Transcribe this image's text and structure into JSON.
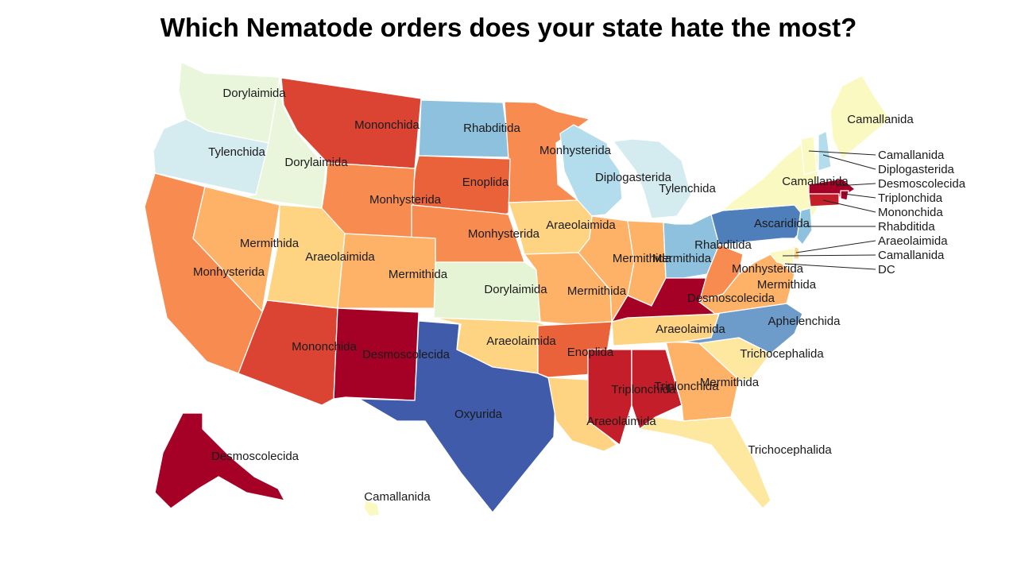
{
  "title": "Which Nematode orders does your state hate the most?",
  "colors": {
    "Dorylaimida_pale": "#eaf6dc",
    "Tylenchida": "#d4ecef",
    "Diplogasterida": "#b3dcec",
    "Rhabditida": "#8dc1de",
    "Ascaridida": "#4e7fba",
    "Aphelenchida": "#6d9bca",
    "Oxyurida": "#3f5ba9",
    "Camallanida": "#fbf9c2",
    "Trichocephalida": "#fee8a0",
    "Araeolaimida": "#fed382",
    "Mermithida": "#fdb267",
    "Monhysterida": "#f88c50",
    "Enoplida": "#ea6239",
    "Mononchida": "#db4432",
    "Triplonchida": "#c41e2a",
    "Desmoscolecida": "#a50026",
    "Dorylaimida_green": "#e6f4d6"
  },
  "states": [
    {
      "id": "WA",
      "label": "Dorylaimida",
      "order": "Dorylaimida"
    },
    {
      "id": "OR",
      "label": "Tylenchida",
      "order": "Tylenchida"
    },
    {
      "id": "ID",
      "label": "Dorylaimida",
      "order": "Dorylaimida"
    },
    {
      "id": "MT",
      "label": "Mononchida",
      "order": "Mononchida"
    },
    {
      "id": "ND",
      "label": "Rhabditida",
      "order": "Rhabditida"
    },
    {
      "id": "MN",
      "label": "Monhysterida",
      "order": "Monhysterida"
    },
    {
      "id": "WI",
      "label": "Diplogasterida",
      "order": "Diplogasterida"
    },
    {
      "id": "MI",
      "label": "Tylenchida",
      "order": "Tylenchida"
    },
    {
      "id": "SD",
      "label": "Enoplida",
      "order": "Enoplida"
    },
    {
      "id": "WY",
      "label": "Monhysterida",
      "order": "Monhysterida"
    },
    {
      "id": "NE",
      "label": "Monhysterida",
      "order": "Monhysterida"
    },
    {
      "id": "IA",
      "label": "Araeolaimida",
      "order": "Araeolaimida"
    },
    {
      "id": "CA",
      "label": "Monhysterida",
      "order": "Monhysterida"
    },
    {
      "id": "NV",
      "label": "Mermithida",
      "order": "Mermithida"
    },
    {
      "id": "UT",
      "label": "Araeolaimida",
      "order": "Araeolaimida"
    },
    {
      "id": "CO",
      "label": "Mermithida",
      "order": "Mermithida"
    },
    {
      "id": "KS",
      "label": "Dorylaimida",
      "order": "Dorylaimida"
    },
    {
      "id": "MO",
      "label": "Mermithida",
      "order": "Mermithida"
    },
    {
      "id": "IL",
      "label": "Mermithida",
      "order": "Mermithida"
    },
    {
      "id": "IN",
      "label": "Mermithida",
      "order": "Mermithida"
    },
    {
      "id": "OH",
      "label": "Rhabditida",
      "order": "Rhabditida"
    },
    {
      "id": "AZ",
      "label": "Mononchida",
      "order": "Mononchida"
    },
    {
      "id": "NM",
      "label": "Desmoscolecida",
      "order": "Desmoscolecida"
    },
    {
      "id": "OK",
      "label": "Araeolaimida",
      "order": "Araeolaimida"
    },
    {
      "id": "TX",
      "label": "Oxyurida",
      "order": "Oxyurida"
    },
    {
      "id": "AR",
      "label": "Enoplida",
      "order": "Enoplida"
    },
    {
      "id": "LA",
      "label": "Araeolaimida",
      "order": "Araeolaimida"
    },
    {
      "id": "MS",
      "label": "Triplonchida",
      "order": "Triplonchida"
    },
    {
      "id": "AL",
      "label": "Triplonchida",
      "order": "Triplonchida"
    },
    {
      "id": "GA",
      "label": "Mermithida",
      "order": "Mermithida"
    },
    {
      "id": "FL",
      "label": "Trichocephalida",
      "order": "Trichocephalida"
    },
    {
      "id": "SC",
      "label": "Trichocephalida",
      "order": "Trichocephalida"
    },
    {
      "id": "NC",
      "label": "Aphelenchida",
      "order": "Aphelenchida"
    },
    {
      "id": "TN",
      "label": "Araeolaimida",
      "order": "Araeolaimida"
    },
    {
      "id": "KY",
      "label": "Desmoscolecida",
      "order": "Desmoscolecida"
    },
    {
      "id": "WV",
      "label": "Monhysterida",
      "order": "Monhysterida"
    },
    {
      "id": "VA",
      "label": "Mermithida",
      "order": "Mermithida"
    },
    {
      "id": "PA",
      "label": "Ascaridida",
      "order": "Ascaridida"
    },
    {
      "id": "NY",
      "label": "Camallanida",
      "order": "Camallanida"
    },
    {
      "id": "ME",
      "label": "Camallanida",
      "order": "Camallanida"
    },
    {
      "id": "AK",
      "label": "Desmoscolecida",
      "order": "Desmoscolecida"
    },
    {
      "id": "HI",
      "label": "Camallanida",
      "order": "Camallanida"
    }
  ],
  "callouts": [
    {
      "id": "VT",
      "label": "Camallanida"
    },
    {
      "id": "NH",
      "label": "Diplogasterida"
    },
    {
      "id": "MA",
      "label": "Desmoscolecida"
    },
    {
      "id": "RI",
      "label": "Triplonchida"
    },
    {
      "id": "CT",
      "label": "Mononchida"
    },
    {
      "id": "NJ",
      "label": "Rhabditida"
    },
    {
      "id": "DE",
      "label": "Araeolaimida"
    },
    {
      "id": "MD",
      "label": "Camallanida"
    },
    {
      "id": "DC",
      "label": "DC"
    }
  ]
}
